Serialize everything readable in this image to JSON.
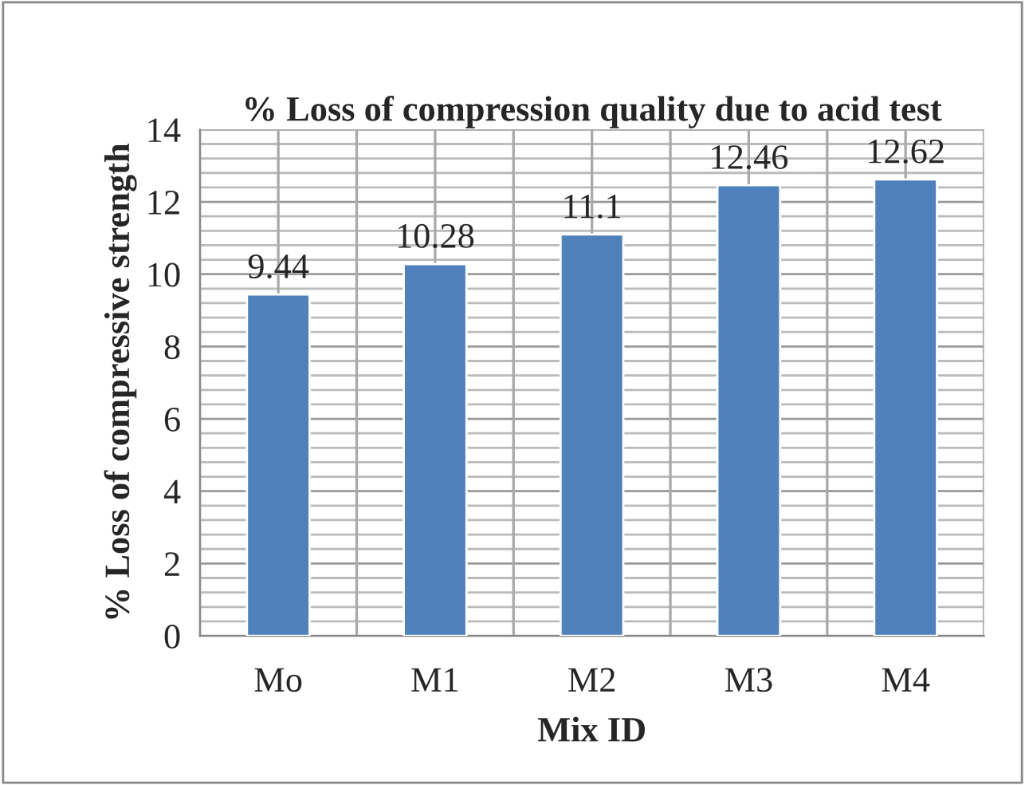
{
  "chart_data": {
    "type": "bar",
    "title": "% Loss of compression quality due to acid test",
    "xlabel": "Mix ID",
    "ylabel": "% Loss of compressive strength",
    "categories": [
      "Mo",
      "M1",
      "M2",
      "M3",
      "M4"
    ],
    "values": [
      9.44,
      10.28,
      11.1,
      12.46,
      12.62
    ],
    "color": "#4f81bd",
    "ylim": [
      0,
      14
    ],
    "yticks": [
      0,
      2,
      4,
      6,
      8,
      10,
      12,
      14
    ],
    "grid": true,
    "data_labels": true
  }
}
